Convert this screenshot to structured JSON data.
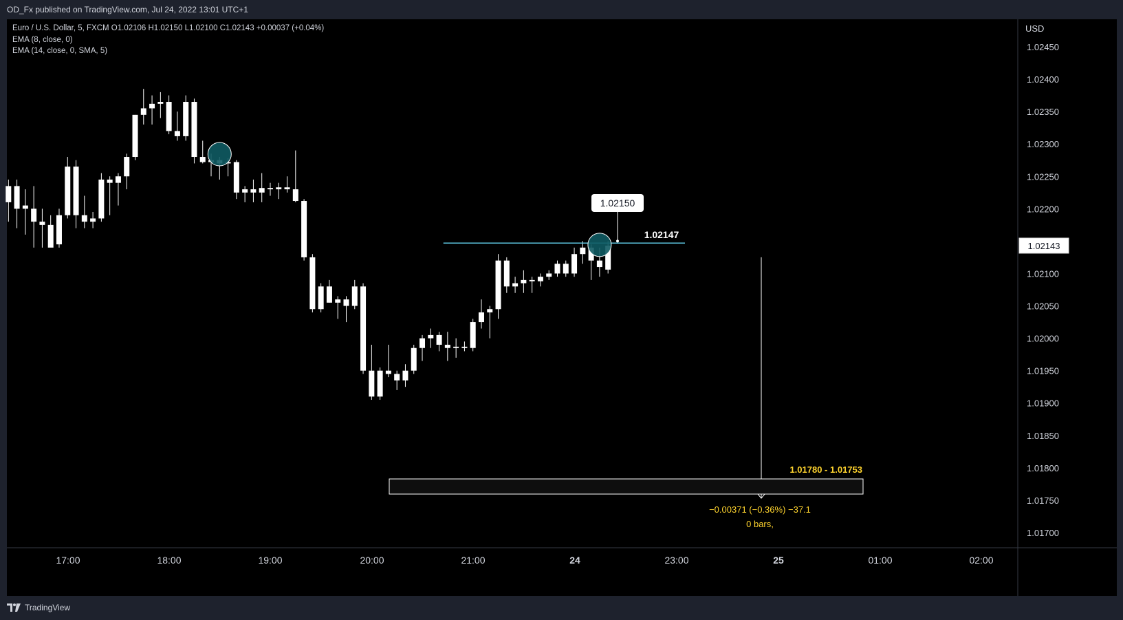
{
  "header": {
    "published_text": "OD_Fx published on TradingView.com, Jul 24, 2022 13:01 UTC+1"
  },
  "legend": {
    "symbol_line": "Euro / U.S. Dollar, 5, FXCM  O1.02106  H1.02150  L1.02100  C1.02143  +0.00037 (+0.04%)",
    "ema1": "EMA (8, close, 0)",
    "ema2": "EMA (14, close, 0, SMA, 5)"
  },
  "footer": {
    "brand": "TradingView"
  },
  "colors": {
    "background": "#000000",
    "frame": "#1e222d",
    "candle": "#ffffff",
    "hline": "#5ec8e5",
    "marker": "#0f5b63",
    "measure_text": "#ffd42e",
    "axis_text": "#d1d4dc"
  },
  "chart_data": {
    "type": "candlestick",
    "currency_label": "USD",
    "ylim": [
      1.01665,
      1.02505
    ],
    "y_ticks": [
      "1.02450",
      "1.02400",
      "1.02350",
      "1.02300",
      "1.02250",
      "1.02200",
      "1.02150",
      "1.02100",
      "1.02050",
      "1.02000",
      "1.01950",
      "1.01900",
      "1.01850",
      "1.01800",
      "1.01750",
      "1.01700"
    ],
    "x_ticks": [
      "17:00",
      "18:00",
      "19:00",
      "20:00",
      "21:00",
      "24",
      "23:00",
      "25",
      "01:00",
      "02:00"
    ],
    "bold_x_ticks": [
      "24",
      "25"
    ],
    "last_price_label": "1.02143",
    "horizontal_line": {
      "price": 1.02147,
      "label": "1.02147"
    },
    "price_callout": {
      "price": 1.0215,
      "label": "1.02150"
    },
    "markers": [
      {
        "type": "circle",
        "bar_index": 25
      },
      {
        "type": "circle",
        "bar_index": 70
      }
    ],
    "measure": {
      "from_price": 1.02125,
      "to_price": 1.01753,
      "range_label": "1.01780 - 1.01753",
      "change_label": "−0.00371 (−0.36%) −37.1",
      "bars_label": "0 bars,"
    },
    "ohlc": [
      [
        1.0221,
        1.02245,
        1.0218,
        1.02235
      ],
      [
        1.02235,
        1.02245,
        1.0217,
        1.022
      ],
      [
        1.022,
        1.0223,
        1.0216,
        1.02205
      ],
      [
        1.022,
        1.02235,
        1.0214,
        1.0218
      ],
      [
        1.0218,
        1.022,
        1.0214,
        1.02175
      ],
      [
        1.02175,
        1.0219,
        1.02145,
        1.0214
      ],
      [
        1.02145,
        1.022,
        1.0214,
        1.0219
      ],
      [
        1.0219,
        1.0228,
        1.02185,
        1.02265
      ],
      [
        1.02265,
        1.02275,
        1.0217,
        1.0219
      ],
      [
        1.0219,
        1.0222,
        1.0217,
        1.0218
      ],
      [
        1.0218,
        1.02195,
        1.0217,
        1.02185
      ],
      [
        1.02185,
        1.02255,
        1.0218,
        1.02245
      ],
      [
        1.02245,
        1.0225,
        1.0219,
        1.0224
      ],
      [
        1.0224,
        1.02255,
        1.02205,
        1.0225
      ],
      [
        1.0225,
        1.02285,
        1.0223,
        1.0228
      ],
      [
        1.0228,
        1.02345,
        1.02275,
        1.02345
      ],
      [
        1.02345,
        1.02385,
        1.0233,
        1.02355
      ],
      [
        1.02355,
        1.02375,
        1.0233,
        1.02362
      ],
      [
        1.02362,
        1.0238,
        1.0234,
        1.02365
      ],
      [
        1.02365,
        1.02375,
        1.02315,
        1.0232
      ],
      [
        1.0232,
        1.0235,
        1.02305,
        1.02312
      ],
      [
        1.02312,
        1.02375,
        1.02305,
        1.02365
      ],
      [
        1.02365,
        1.0237,
        1.0227,
        1.0228
      ],
      [
        1.0228,
        1.02305,
        1.0227,
        1.02272
      ],
      [
        1.02272,
        1.02285,
        1.0225,
        1.02275
      ],
      [
        1.02275,
        1.0228,
        1.02245,
        1.0227
      ],
      [
        1.0227,
        1.02278,
        1.0225,
        1.02272
      ],
      [
        1.02272,
        1.02275,
        1.02215,
        1.02225
      ],
      [
        1.02225,
        1.02235,
        1.0221,
        1.0223
      ],
      [
        1.0223,
        1.02245,
        1.0221,
        1.02225
      ],
      [
        1.02225,
        1.02255,
        1.0221,
        1.02232
      ],
      [
        1.02232,
        1.0224,
        1.0222,
        1.0223
      ],
      [
        1.0223,
        1.0224,
        1.02215,
        1.02233
      ],
      [
        1.02233,
        1.0225,
        1.02225,
        1.0223
      ],
      [
        1.0223,
        1.0229,
        1.0221,
        1.02212
      ],
      [
        1.02212,
        1.02215,
        1.0212,
        1.02125
      ],
      [
        1.02125,
        1.0213,
        1.0204,
        1.02045
      ],
      [
        1.02045,
        1.02085,
        1.0204,
        1.0208
      ],
      [
        1.0208,
        1.0209,
        1.02055,
        1.02055
      ],
      [
        1.02055,
        1.02065,
        1.0203,
        1.0206
      ],
      [
        1.0206,
        1.02065,
        1.02025,
        1.0205
      ],
      [
        1.0205,
        1.0209,
        1.02045,
        1.0208
      ],
      [
        1.0208,
        1.02085,
        1.01945,
        1.0195
      ],
      [
        1.0195,
        1.0199,
        1.01905,
        1.0191
      ],
      [
        1.0191,
        1.01955,
        1.01905,
        1.0195
      ],
      [
        1.0195,
        1.0199,
        1.0194,
        1.01945
      ],
      [
        1.01945,
        1.0195,
        1.0192,
        1.01935
      ],
      [
        1.01935,
        1.0196,
        1.01925,
        1.0195
      ],
      [
        1.0195,
        1.0199,
        1.01945,
        1.01985
      ],
      [
        1.01985,
        1.02005,
        1.01965,
        1.02
      ],
      [
        1.02,
        1.02015,
        1.01985,
        1.02005
      ],
      [
        1.02005,
        1.0201,
        1.0198,
        1.0199
      ],
      [
        1.0199,
        1.0201,
        1.01965,
        1.01985
      ],
      [
        1.01985,
        1.02,
        1.0197,
        1.01987
      ],
      [
        1.01987,
        1.01995,
        1.0198,
        1.01985
      ],
      [
        1.01985,
        1.0203,
        1.0198,
        1.02025
      ],
      [
        1.02025,
        1.0206,
        1.02015,
        1.0204
      ],
      [
        1.0204,
        1.0205,
        1.02,
        1.02045
      ],
      [
        1.02045,
        1.0213,
        1.0203,
        1.0212
      ],
      [
        1.0212,
        1.02125,
        1.0207,
        1.0208
      ],
      [
        1.0208,
        1.02095,
        1.0207,
        1.02085
      ],
      [
        1.02085,
        1.02105,
        1.0207,
        1.0209
      ],
      [
        1.0209,
        1.02095,
        1.0207,
        1.02088
      ],
      [
        1.02088,
        1.021,
        1.0208,
        1.02095
      ],
      [
        1.02095,
        1.02105,
        1.0209,
        1.021
      ],
      [
        1.021,
        1.0212,
        1.02095,
        1.02115
      ],
      [
        1.02115,
        1.0212,
        1.02095,
        1.021
      ],
      [
        1.021,
        1.0214,
        1.02095,
        1.0213
      ],
      [
        1.0213,
        1.0215,
        1.02115,
        1.0214
      ],
      [
        1.0214,
        1.02145,
        1.0209,
        1.0212
      ],
      [
        1.0212,
        1.0214,
        1.02095,
        1.0211
      ],
      [
        1.02106,
        1.0215,
        1.021,
        1.02143
      ]
    ]
  }
}
